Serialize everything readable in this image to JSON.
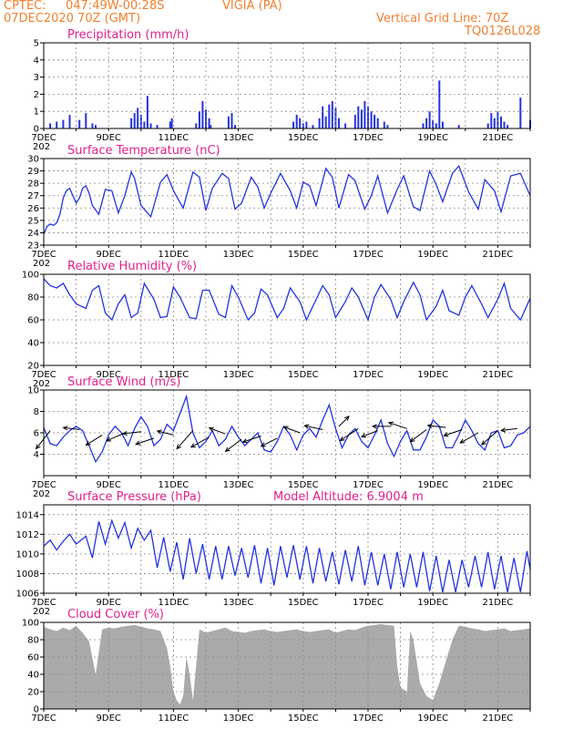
{
  "header": {
    "source": "CPTEC:",
    "coords": "047:49W-00:28S",
    "station": "VIGIA (PA)",
    "date": "07DEC2020 70Z (GMT)",
    "grid_line": "Vertical Grid Line: 70Z",
    "code": "TQ0126L028"
  },
  "colors": {
    "header": "#f08030",
    "title": "#e0208a",
    "series": "#2433e0",
    "cloud": "#aaaaaa"
  },
  "x_axis": {
    "labels": [
      "7DEC",
      "9DEC",
      "11DEC",
      "13DEC",
      "15DEC",
      "17DEC",
      "19DEC",
      "21DEC"
    ],
    "label_days": [
      7,
      9,
      11,
      13,
      15,
      17,
      19,
      21
    ],
    "start_day": 7,
    "end_day": 22,
    "year_stub": "202"
  },
  "chart_data": [
    {
      "type": "bar",
      "title": "Precipitation (mm/h)",
      "ylim": [
        0,
        5
      ],
      "yticks": [
        "0",
        "1",
        "2",
        "3",
        "4",
        "5"
      ],
      "grid": "dashed",
      "x": [
        7.2,
        7.4,
        7.6,
        7.8,
        8.1,
        8.3,
        8.5,
        8.6,
        9.7,
        9.8,
        9.9,
        10.0,
        10.1,
        10.2,
        10.3,
        10.5,
        10.9,
        10.95,
        11.7,
        11.8,
        11.9,
        12.0,
        12.1,
        12.15,
        12.7,
        12.8,
        12.9,
        14.7,
        14.8,
        14.9,
        15.0,
        15.1,
        15.3,
        15.5,
        15.6,
        15.7,
        15.8,
        15.9,
        16.0,
        16.1,
        16.3,
        16.6,
        16.7,
        16.8,
        16.9,
        17.0,
        17.1,
        17.2,
        17.3,
        17.5,
        17.6,
        18.7,
        18.8,
        18.9,
        19.0,
        19.1,
        19.2,
        19.3,
        19.8,
        20.7,
        20.8,
        20.9,
        21.0,
        21.1,
        21.2,
        21.3,
        21.7,
        22.0
      ],
      "values": [
        0.3,
        0.4,
        0.5,
        0.8,
        0.5,
        0.9,
        0.3,
        0.2,
        0.6,
        0.9,
        1.2,
        0.8,
        0.4,
        1.9,
        0.3,
        0.2,
        0.4,
        0.6,
        0.3,
        1.0,
        1.6,
        1.1,
        0.6,
        0.2,
        0.7,
        0.9,
        0.2,
        0.4,
        0.8,
        0.6,
        0.3,
        0.4,
        0.2,
        0.6,
        1.3,
        0.7,
        1.4,
        1.6,
        1.2,
        0.6,
        0.3,
        0.8,
        1.3,
        1.1,
        1.6,
        1.3,
        1.0,
        0.8,
        0.6,
        0.4,
        0.2,
        0.3,
        0.6,
        1.0,
        0.5,
        0.3,
        2.8,
        0.4,
        0.2,
        0.3,
        0.9,
        0.6,
        1.0,
        0.7,
        0.4,
        0.2,
        1.8,
        0.5
      ]
    },
    {
      "type": "line",
      "title": "Surface Temperature (nC)",
      "ylim": [
        23,
        30
      ],
      "yticks": [
        "23",
        "24",
        "25",
        "26",
        "27",
        "28",
        "29",
        "30"
      ],
      "grid": "dashed",
      "x": [
        7.0,
        7.1,
        7.2,
        7.3,
        7.4,
        7.5,
        7.6,
        7.7,
        7.8,
        7.9,
        8.0,
        8.1,
        8.2,
        8.3,
        8.4,
        8.5,
        8.7,
        8.9,
        9.1,
        9.3,
        9.5,
        9.7,
        9.8,
        10.0,
        10.3,
        10.6,
        10.8,
        11.0,
        11.3,
        11.6,
        11.8,
        12.0,
        12.2,
        12.5,
        12.7,
        12.9,
        13.1,
        13.4,
        13.6,
        13.8,
        14.0,
        14.3,
        14.6,
        14.8,
        15.0,
        15.2,
        15.4,
        15.7,
        15.9,
        16.1,
        16.4,
        16.6,
        16.9,
        17.1,
        17.3,
        17.6,
        17.9,
        18.1,
        18.4,
        18.6,
        18.9,
        19.1,
        19.3,
        19.6,
        19.8,
        20.1,
        20.4,
        20.6,
        20.9,
        21.1,
        21.4,
        21.7,
        22.0
      ],
      "values": [
        23.9,
        24.5,
        24.7,
        24.6,
        24.8,
        25.5,
        26.8,
        27.4,
        27.6,
        27.0,
        26.4,
        26.8,
        27.6,
        27.8,
        27.2,
        26.2,
        25.5,
        27.5,
        27.4,
        25.6,
        27.0,
        28.9,
        28.4,
        26.2,
        25.3,
        28.1,
        28.7,
        27.4,
        26.0,
        28.9,
        28.5,
        25.8,
        27.6,
        28.8,
        28.4,
        25.9,
        26.4,
        28.5,
        27.7,
        26.0,
        27.2,
        28.8,
        27.4,
        26.0,
        28.1,
        27.8,
        26.2,
        29.2,
        28.5,
        26.0,
        28.7,
        28.2,
        25.9,
        27.0,
        28.6,
        25.6,
        27.5,
        28.6,
        26.1,
        25.8,
        29.0,
        27.9,
        26.5,
        28.8,
        29.4,
        27.3,
        25.9,
        28.3,
        27.4,
        25.7,
        28.6,
        28.8,
        27.0
      ]
    },
    {
      "type": "line",
      "title": "Relative Humidity (%)",
      "ylim": [
        20,
        100
      ],
      "yticks": [
        "20",
        "40",
        "60",
        "80",
        "100"
      ],
      "grid": "dashed",
      "x": [
        7.0,
        7.2,
        7.4,
        7.6,
        7.8,
        8.0,
        8.3,
        8.5,
        8.7,
        8.9,
        9.1,
        9.3,
        9.5,
        9.7,
        9.9,
        10.1,
        10.4,
        10.6,
        10.8,
        11.0,
        11.2,
        11.5,
        11.7,
        11.9,
        12.1,
        12.4,
        12.6,
        12.8,
        13.0,
        13.3,
        13.5,
        13.7,
        13.9,
        14.2,
        14.4,
        14.6,
        14.9,
        15.1,
        15.3,
        15.6,
        15.8,
        16.0,
        16.3,
        16.5,
        16.7,
        17.0,
        17.2,
        17.4,
        17.7,
        17.9,
        18.1,
        18.4,
        18.6,
        18.8,
        19.1,
        19.3,
        19.5,
        19.8,
        20.0,
        20.2,
        20.5,
        20.7,
        21.0,
        21.2,
        21.4,
        21.7,
        22.0
      ],
      "values": [
        96,
        90,
        88,
        92,
        82,
        74,
        70,
        86,
        90,
        66,
        60,
        74,
        82,
        62,
        66,
        92,
        78,
        62,
        63,
        89,
        80,
        62,
        61,
        86,
        86,
        65,
        62,
        90,
        80,
        60,
        66,
        87,
        82,
        62,
        70,
        88,
        76,
        60,
        72,
        90,
        82,
        62,
        76,
        88,
        80,
        60,
        80,
        91,
        78,
        62,
        76,
        93,
        82,
        60,
        72,
        86,
        68,
        64,
        80,
        90,
        74,
        62,
        78,
        92,
        70,
        60,
        79
      ]
    },
    {
      "type": "line",
      "title": "Surface Wind (m/s)",
      "ylim": [
        2,
        10
      ],
      "yticks": [
        "4",
        "6",
        "8",
        "10"
      ],
      "grid": "dashed",
      "x": [
        7.0,
        7.2,
        7.4,
        7.6,
        7.8,
        8.0,
        8.2,
        8.4,
        8.6,
        8.8,
        9.0,
        9.2,
        9.4,
        9.6,
        9.8,
        10.0,
        10.2,
        10.4,
        10.6,
        10.8,
        11.0,
        11.2,
        11.4,
        11.6,
        11.8,
        12.0,
        12.2,
        12.4,
        12.6,
        12.8,
        13.0,
        13.2,
        13.4,
        13.6,
        13.8,
        14.0,
        14.2,
        14.4,
        14.6,
        14.8,
        15.0,
        15.2,
        15.4,
        15.6,
        15.8,
        16.0,
        16.2,
        16.4,
        16.6,
        16.8,
        17.0,
        17.2,
        17.4,
        17.6,
        17.8,
        18.0,
        18.2,
        18.4,
        18.6,
        18.8,
        19.0,
        19.2,
        19.4,
        19.6,
        19.8,
        20.0,
        20.2,
        20.4,
        20.6,
        20.8,
        21.0,
        21.2,
        21.4,
        21.6,
        21.8,
        22.0
      ],
      "values": [
        6.5,
        5.0,
        4.8,
        5.6,
        6.2,
        6.6,
        6.2,
        4.8,
        3.3,
        4.2,
        5.8,
        6.6,
        6.0,
        4.8,
        6.4,
        7.5,
        6.6,
        4.8,
        5.4,
        6.8,
        6.2,
        7.8,
        9.4,
        6.0,
        4.6,
        5.2,
        6.2,
        4.8,
        5.4,
        6.6,
        5.6,
        4.8,
        5.4,
        6.0,
        4.4,
        4.2,
        5.2,
        6.6,
        5.8,
        4.4,
        5.8,
        6.4,
        5.6,
        7.2,
        8.6,
        6.4,
        4.6,
        5.8,
        6.4,
        5.2,
        4.6,
        5.8,
        7.2,
        5.0,
        3.8,
        5.2,
        6.2,
        4.4,
        4.4,
        5.6,
        7.2,
        6.6,
        4.6,
        4.6,
        5.8,
        7.2,
        6.2,
        5.0,
        4.4,
        6.0,
        6.2,
        4.6,
        4.8,
        5.8,
        6.0,
        6.6
      ]
    },
    {
      "type": "line",
      "title": "Surface Pressure (hPa)",
      "annotation": "Model Altitude: 6.9004 m",
      "ylim": [
        1006,
        1015
      ],
      "yticks": [
        "1006",
        "1008",
        "1010",
        "1012",
        "1014"
      ],
      "grid": "dashed",
      "x": [
        7.0,
        7.2,
        7.4,
        7.6,
        7.8,
        8.0,
        8.3,
        8.5,
        8.7,
        8.9,
        9.1,
        9.3,
        9.5,
        9.7,
        9.9,
        10.1,
        10.3,
        10.5,
        10.7,
        10.9,
        11.1,
        11.3,
        11.5,
        11.7,
        11.9,
        12.1,
        12.3,
        12.5,
        12.7,
        12.9,
        13.1,
        13.3,
        13.5,
        13.7,
        13.9,
        14.1,
        14.3,
        14.5,
        14.7,
        14.9,
        15.1,
        15.3,
        15.5,
        15.7,
        15.9,
        16.1,
        16.3,
        16.5,
        16.7,
        16.9,
        17.1,
        17.3,
        17.5,
        17.7,
        17.9,
        18.1,
        18.3,
        18.5,
        18.7,
        18.9,
        19.1,
        19.3,
        19.5,
        19.7,
        19.9,
        20.1,
        20.3,
        20.5,
        20.7,
        20.9,
        21.1,
        21.3,
        21.5,
        21.7,
        21.9,
        22.0
      ],
      "values": [
        1010.8,
        1011.4,
        1010.4,
        1011.3,
        1012.0,
        1011.0,
        1011.8,
        1009.6,
        1013.3,
        1011.0,
        1013.4,
        1011.6,
        1013.2,
        1010.6,
        1012.6,
        1011.4,
        1012.4,
        1008.6,
        1011.7,
        1008.2,
        1011.2,
        1007.4,
        1011.6,
        1008.0,
        1011.0,
        1007.4,
        1010.8,
        1007.4,
        1010.8,
        1007.8,
        1010.6,
        1007.6,
        1010.9,
        1007.0,
        1010.6,
        1006.8,
        1010.8,
        1007.6,
        1010.9,
        1007.4,
        1010.8,
        1007.0,
        1010.6,
        1007.2,
        1010.2,
        1006.9,
        1010.4,
        1007.2,
        1010.8,
        1006.8,
        1010.2,
        1006.8,
        1010.0,
        1006.4,
        1010.2,
        1006.6,
        1010.0,
        1006.6,
        1010.2,
        1006.2,
        1009.8,
        1006.1,
        1009.4,
        1006.1,
        1009.4,
        1006.6,
        1009.8,
        1006.6,
        1010.2,
        1006.4,
        1009.8,
        1006.1,
        1009.6,
        1006.1,
        1010.3,
        1008.4
      ]
    },
    {
      "type": "area",
      "title": "Cloud Cover (%)",
      "ylim": [
        0,
        100
      ],
      "yticks": [
        "0",
        "20",
        "40",
        "60",
        "80",
        "100"
      ],
      "grid": "dashed",
      "x": [
        7.0,
        7.2,
        7.4,
        7.6,
        7.8,
        8.0,
        8.2,
        8.4,
        8.6,
        8.8,
        9.0,
        9.2,
        9.4,
        9.6,
        9.8,
        10.0,
        10.2,
        10.4,
        10.6,
        10.8,
        10.9,
        11.0,
        11.1,
        11.2,
        11.3,
        11.4,
        11.5,
        11.6,
        11.8,
        12.0,
        12.2,
        12.4,
        12.6,
        12.8,
        13.0,
        13.2,
        13.4,
        13.6,
        13.8,
        14.0,
        14.2,
        14.4,
        14.6,
        14.8,
        15.0,
        15.2,
        15.4,
        15.6,
        15.8,
        16.0,
        16.2,
        16.4,
        16.6,
        16.8,
        17.0,
        17.2,
        17.4,
        17.6,
        17.8,
        17.9,
        18.0,
        18.2,
        18.3,
        18.4,
        18.6,
        18.8,
        19.0,
        19.2,
        19.4,
        19.6,
        19.8,
        20.0,
        20.2,
        20.4,
        20.6,
        20.8,
        21.0,
        21.2,
        21.4,
        21.6,
        21.8,
        22.0
      ],
      "values": [
        95,
        92,
        90,
        94,
        91,
        96,
        88,
        78,
        40,
        92,
        94,
        93,
        95,
        96,
        97,
        95,
        93,
        92,
        90,
        70,
        50,
        20,
        10,
        5,
        15,
        60,
        40,
        10,
        92,
        88,
        90,
        92,
        94,
        90,
        89,
        88,
        90,
        91,
        92,
        90,
        89,
        90,
        91,
        92,
        90,
        89,
        90,
        91,
        92,
        88,
        90,
        92,
        91,
        94,
        96,
        97,
        98,
        97,
        96,
        50,
        25,
        20,
        90,
        80,
        30,
        15,
        10,
        30,
        55,
        80,
        96,
        95,
        93,
        92,
        90,
        91,
        92,
        93,
        90,
        91,
        92,
        93
      ]
    }
  ],
  "wind_vectors": {
    "x": [
      7.2,
      8.1,
      8.8,
      9.5,
      10.0,
      10.4,
      11.0,
      11.6,
      12.1,
      12.6,
      13.1,
      13.7,
      14.2,
      14.9,
      15.6,
      16.1,
      16.7,
      17.3,
      17.7,
      18.2,
      18.8,
      19.4,
      19.9,
      20.4,
      21.0,
      21.6
    ],
    "y": [
      6.2,
      6.3,
      5.8,
      6.0,
      6.1,
      5.5,
      5.8,
      6.2,
      5.6,
      5.9,
      5.4,
      5.7,
      5.5,
      6.0,
      6.3,
      6.6,
      6.4,
      6.2,
      6.6,
      6.4,
      6.3,
      6.5,
      6.3,
      6.0,
      6.2,
      6.4
    ],
    "dx": [
      -0.7,
      -0.8,
      -0.8,
      -0.9,
      -0.9,
      -0.9,
      -0.8,
      -0.8,
      -0.9,
      -0.8,
      -0.8,
      -0.9,
      -0.8,
      -0.8,
      -0.9,
      0.5,
      -0.9,
      -0.8,
      -0.9,
      -0.9,
      -0.8,
      -0.9,
      -0.9,
      -0.9,
      -0.8,
      -0.8
    ],
    "dy": [
      -0.9,
      0.1,
      -0.5,
      -0.4,
      -0.1,
      -0.3,
      0.2,
      -0.9,
      -0.5,
      0.3,
      -0.6,
      -0.3,
      -0.4,
      0.3,
      0.2,
      0.5,
      -0.6,
      -0.3,
      0.0,
      0.3,
      -0.6,
      0.1,
      -0.3,
      -0.5,
      -0.7,
      -0.1
    ]
  }
}
